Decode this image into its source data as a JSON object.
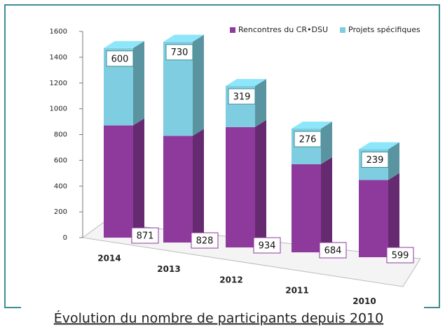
{
  "chart_data": {
    "type": "bar3d-stacked",
    "caption": "Évolution du nombre de participants depuis 2010",
    "categories": [
      "2014",
      "2013",
      "2012",
      "2011",
      "2010"
    ],
    "series": [
      {
        "name": "Rencontres du CR•DSU",
        "color": "#8e3a9c",
        "values": [
          871,
          828,
          934,
          684,
          599
        ]
      },
      {
        "name": "Projets spécifiques",
        "color": "#7fcde0",
        "values": [
          600,
          730,
          319,
          276,
          239
        ]
      }
    ],
    "ylim": [
      0,
      1600
    ],
    "yticks": [
      0,
      200,
      400,
      600,
      800,
      1000,
      1200,
      1400,
      1600
    ]
  }
}
